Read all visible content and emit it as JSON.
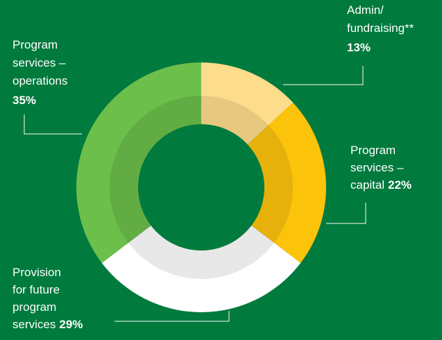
{
  "chart_data": {
    "type": "donut",
    "labels": [
      [
        "Admin/",
        "fundraising**"
      ],
      [
        "Program",
        "services –",
        "capital"
      ],
      [
        "Provision",
        "for future",
        "program",
        "services"
      ],
      [
        "Program",
        "services –",
        "operations"
      ]
    ],
    "values": [
      13,
      22,
      29,
      35
    ],
    "value_labels": [
      "13%",
      "22%",
      "29%",
      "35%"
    ],
    "colors": [
      "#fddd8c",
      "#fcc30b",
      "#ffffff",
      "#6cbf4a"
    ],
    "background": "#007a3d"
  }
}
